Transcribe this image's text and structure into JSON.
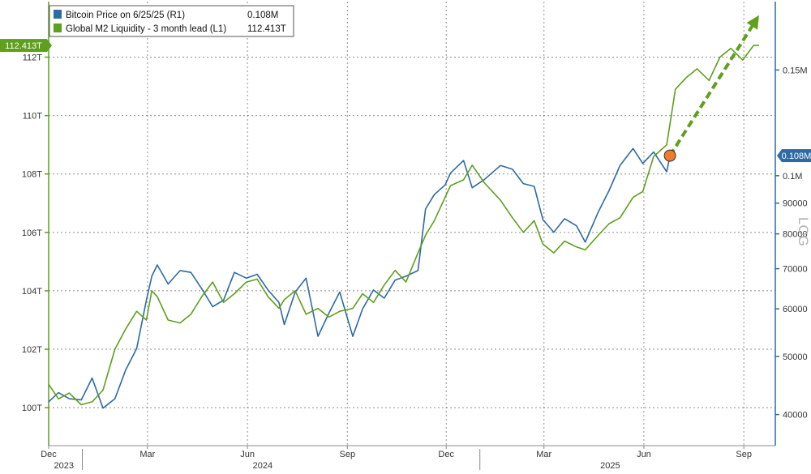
{
  "chart_data": {
    "type": "line",
    "legend": {
      "placement": "top-left",
      "entries": [
        {
          "label": "Bitcoin Price on 6/25/25 (R1)",
          "value": "0.108M",
          "color": "#2e6aa4"
        },
        {
          "label": "Global M2 Liquidity - 3 month lead (L1)",
          "value": "112.413T",
          "color": "#5e9f1c"
        }
      ]
    },
    "left_axis": {
      "ticks": [
        {
          "value": 100,
          "label": "100T"
        },
        {
          "value": 102,
          "label": "102T"
        },
        {
          "value": 104,
          "label": "104T"
        },
        {
          "value": 106,
          "label": "106T"
        },
        {
          "value": 108,
          "label": "108T"
        },
        {
          "value": 110,
          "label": "110T"
        },
        {
          "value": 112,
          "label": "112T"
        }
      ],
      "range": [
        98.7,
        113.9
      ],
      "current_badge": "112.413T"
    },
    "right_axis": {
      "scale": "log",
      "title": "LOG",
      "ticks": [
        {
          "value": 40000,
          "label": "40000"
        },
        {
          "value": 50000,
          "label": "50000"
        },
        {
          "value": 60000,
          "label": "60000"
        },
        {
          "value": 70000,
          "label": "70000"
        },
        {
          "value": 80000,
          "label": "80000"
        },
        {
          "value": 90000,
          "label": "90000"
        },
        {
          "value": 100000,
          "label": "0.1M"
        },
        {
          "value": 150000,
          "label": "0.15M"
        }
      ],
      "range": [
        35500,
        195000
      ],
      "current_badge": "0.108M"
    },
    "x_axis": {
      "range": [
        "2023-12-01",
        "2025-09-30"
      ],
      "month_labels": [
        {
          "date": "2023-12-01",
          "label": "Dec"
        },
        {
          "date": "2024-03-01",
          "label": "Mar"
        },
        {
          "date": "2024-06-01",
          "label": "Jun"
        },
        {
          "date": "2024-09-01",
          "label": "Sep"
        },
        {
          "date": "2024-12-01",
          "label": "Dec"
        },
        {
          "date": "2025-03-01",
          "label": "Mar"
        },
        {
          "date": "2025-06-01",
          "label": "Jun"
        },
        {
          "date": "2025-09-01",
          "label": "Sep"
        }
      ],
      "year_labels": [
        {
          "date": "2023-12-15",
          "label": "2023"
        },
        {
          "date": "2024-06-15",
          "label": "2024"
        },
        {
          "date": "2025-05-01",
          "label": "2025"
        }
      ],
      "year_separators": [
        "2024-01-01",
        "2025-01-01"
      ]
    },
    "series": [
      {
        "name": "Bitcoin Price on 6/25/25 (R1)",
        "axis": "right",
        "color": "#2e6aa4",
        "x": [
          "2023-12-01",
          "2023-12-10",
          "2023-12-20",
          "2023-12-31",
          "2024-01-10",
          "2024-01-20",
          "2024-01-31",
          "2024-02-10",
          "2024-02-20",
          "2024-02-29",
          "2024-03-05",
          "2024-03-10",
          "2024-03-20",
          "2024-03-31",
          "2024-04-10",
          "2024-04-20",
          "2024-04-30",
          "2024-05-10",
          "2024-05-20",
          "2024-05-31",
          "2024-06-10",
          "2024-06-20",
          "2024-06-30",
          "2024-07-05",
          "2024-07-15",
          "2024-07-25",
          "2024-08-05",
          "2024-08-15",
          "2024-08-25",
          "2024-09-06",
          "2024-09-15",
          "2024-09-25",
          "2024-10-05",
          "2024-10-15",
          "2024-10-25",
          "2024-11-05",
          "2024-11-12",
          "2024-11-20",
          "2024-11-30",
          "2024-12-05",
          "2024-12-17",
          "2024-12-25",
          "2025-01-05",
          "2025-01-20",
          "2025-01-31",
          "2025-02-10",
          "2025-02-20",
          "2025-02-28",
          "2025-03-10",
          "2025-03-20",
          "2025-03-31",
          "2025-04-08",
          "2025-04-20",
          "2025-04-30",
          "2025-05-10",
          "2025-05-22",
          "2025-05-31",
          "2025-06-10",
          "2025-06-22",
          "2025-06-25"
        ],
        "values": [
          42000,
          43500,
          42500,
          42300,
          46000,
          41000,
          42500,
          47500,
          51500,
          62000,
          68000,
          71000,
          66000,
          69500,
          69000,
          64800,
          60500,
          62000,
          69000,
          67500,
          68500,
          64500,
          61500,
          56500,
          64000,
          67500,
          54000,
          59000,
          64000,
          54000,
          60000,
          64500,
          62500,
          67000,
          68000,
          69500,
          88000,
          93000,
          96500,
          101000,
          106000,
          95500,
          98500,
          104000,
          102500,
          97000,
          96000,
          84500,
          80500,
          84800,
          82500,
          77500,
          87000,
          94500,
          104000,
          111000,
          104800,
          109500,
          101500,
          108000
        ]
      },
      {
        "name": "Global M2 Liquidity - 3 month lead (L1)",
        "axis": "left",
        "color": "#5e9f1c",
        "x": [
          "2023-12-01",
          "2023-12-10",
          "2023-12-20",
          "2023-12-31",
          "2024-01-10",
          "2024-01-20",
          "2024-01-31",
          "2024-02-10",
          "2024-02-20",
          "2024-02-29",
          "2024-03-05",
          "2024-03-10",
          "2024-03-20",
          "2024-03-31",
          "2024-04-10",
          "2024-04-20",
          "2024-04-30",
          "2024-05-10",
          "2024-05-20",
          "2024-05-31",
          "2024-06-10",
          "2024-06-20",
          "2024-06-30",
          "2024-07-05",
          "2024-07-15",
          "2024-07-25",
          "2024-08-05",
          "2024-08-15",
          "2024-08-25",
          "2024-09-06",
          "2024-09-15",
          "2024-09-25",
          "2024-10-05",
          "2024-10-15",
          "2024-10-25",
          "2024-11-05",
          "2024-11-12",
          "2024-11-20",
          "2024-11-30",
          "2024-12-05",
          "2024-12-17",
          "2024-12-25",
          "2025-01-05",
          "2025-01-20",
          "2025-01-31",
          "2025-02-10",
          "2025-02-20",
          "2025-02-28",
          "2025-03-10",
          "2025-03-20",
          "2025-03-31",
          "2025-04-08",
          "2025-04-20",
          "2025-04-30",
          "2025-05-10",
          "2025-05-22",
          "2025-05-31",
          "2025-06-10",
          "2025-06-22",
          "2025-06-30",
          "2025-07-10",
          "2025-07-20",
          "2025-07-31",
          "2025-08-10",
          "2025-08-20",
          "2025-08-31",
          "2025-09-10",
          "2025-09-15"
        ],
        "values": [
          100.8,
          100.3,
          100.5,
          100.1,
          100.2,
          100.6,
          102.0,
          102.7,
          103.3,
          103.0,
          104.0,
          103.8,
          103.0,
          102.9,
          103.2,
          103.8,
          104.3,
          103.6,
          103.9,
          104.3,
          104.4,
          103.8,
          103.4,
          103.7,
          104.0,
          103.2,
          103.4,
          103.1,
          103.3,
          103.4,
          103.9,
          103.6,
          104.2,
          104.7,
          104.3,
          105.3,
          105.9,
          106.4,
          107.2,
          107.6,
          107.8,
          108.3,
          107.7,
          107.1,
          106.5,
          106.0,
          106.4,
          105.6,
          105.3,
          105.7,
          105.5,
          105.4,
          105.9,
          106.3,
          106.5,
          107.2,
          107.4,
          108.6,
          109.0,
          110.9,
          111.3,
          111.6,
          111.2,
          112.0,
          112.3,
          111.9,
          112.4,
          112.4
        ]
      }
    ],
    "annotation": {
      "type": "projection-arrow",
      "from": {
        "date": "2025-06-25",
        "btc": 108000
      },
      "to": {
        "date": "2025-09-15",
        "btc": 185000
      },
      "color": "#5e9f1c",
      "marker_color": "#f07c2a"
    }
  }
}
